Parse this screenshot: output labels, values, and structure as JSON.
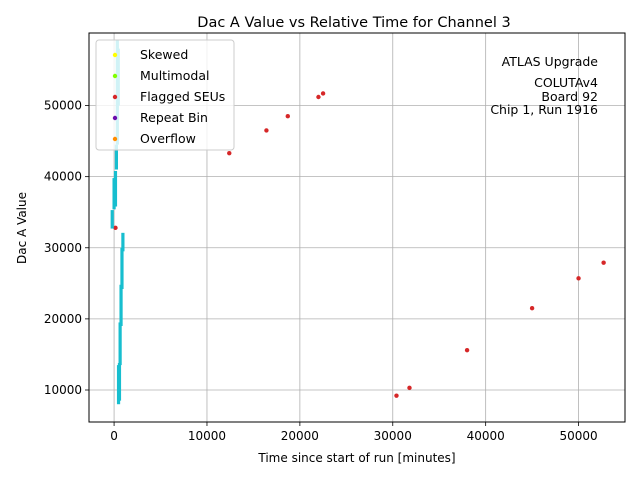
{
  "chart_data": {
    "type": "scatter",
    "title": "Dac A Value vs Relative Time for Channel 3",
    "xlabel": "Time since start of run [minutes]",
    "ylabel": "Dac A Value",
    "xlim": [
      -2700,
      55000
    ],
    "ylim": [
      5500,
      60200
    ],
    "xticks": [
      0,
      10000,
      20000,
      30000,
      40000,
      50000
    ],
    "yticks": [
      10000,
      20000,
      30000,
      40000,
      50000
    ],
    "xtick_labels": [
      "0",
      "10000",
      "20000",
      "30000",
      "40000",
      "50000"
    ],
    "ytick_labels": [
      "10000",
      "20000",
      "30000",
      "40000",
      "50000"
    ],
    "grid": true,
    "legend_position": "top-left",
    "annotation": [
      "ATLAS Upgrade",
      "COLUTAv4",
      "Board 92",
      "Chip 1, Run 1916"
    ],
    "series": [
      {
        "name": "Skewed",
        "color": "#ffff00",
        "x": [],
        "y": []
      },
      {
        "name": "Multimodal",
        "color": "#7fff00",
        "x": [],
        "y": []
      },
      {
        "name": "Flagged SEUs",
        "color": "#d62728",
        "x": [
          150,
          12400,
          16400,
          18700,
          22000,
          22500,
          30400,
          31800,
          38000,
          45000,
          50000,
          52700
        ],
        "y": [
          32800,
          43300,
          46500,
          48500,
          51200,
          51700,
          9200,
          10300,
          15600,
          21500,
          25700,
          27900
        ]
      },
      {
        "name": "Repeat Bin",
        "color": "#6a0dad",
        "x": [],
        "y": []
      },
      {
        "name": "Overflow",
        "color": "#ff8c00",
        "x": [],
        "y": []
      },
      {
        "color": "#17becf",
        "segments": [
          {
            "x": [
              -200,
              -200
            ],
            "y": [
              32700,
              35300
            ]
          },
          {
            "x": [
              0,
              0
            ],
            "y": [
              35400,
              39800
            ]
          },
          {
            "x": [
              150,
              150
            ],
            "y": [
              35800,
              40800
            ]
          },
          {
            "x": [
              250,
              250
            ],
            "y": [
              41000,
              44500
            ]
          },
          {
            "x": [
              350,
              350
            ],
            "y": [
              44500,
              59200
            ]
          },
          {
            "x": [
              450,
              450
            ],
            "y": [
              50000,
              58000
            ]
          },
          {
            "x": [
              480,
              480
            ],
            "y": [
              8000,
              13500
            ]
          },
          {
            "x": [
              580,
              580
            ],
            "y": [
              8500,
              13800
            ]
          },
          {
            "x": [
              650,
              650
            ],
            "y": [
              13500,
              19500
            ]
          },
          {
            "x": [
              750,
              750
            ],
            "y": [
              19000,
              24800
            ]
          },
          {
            "x": [
              850,
              850
            ],
            "y": [
              24200,
              30000
            ]
          },
          {
            "x": [
              950,
              950
            ],
            "y": [
              29500,
              32100
            ]
          }
        ]
      }
    ]
  }
}
